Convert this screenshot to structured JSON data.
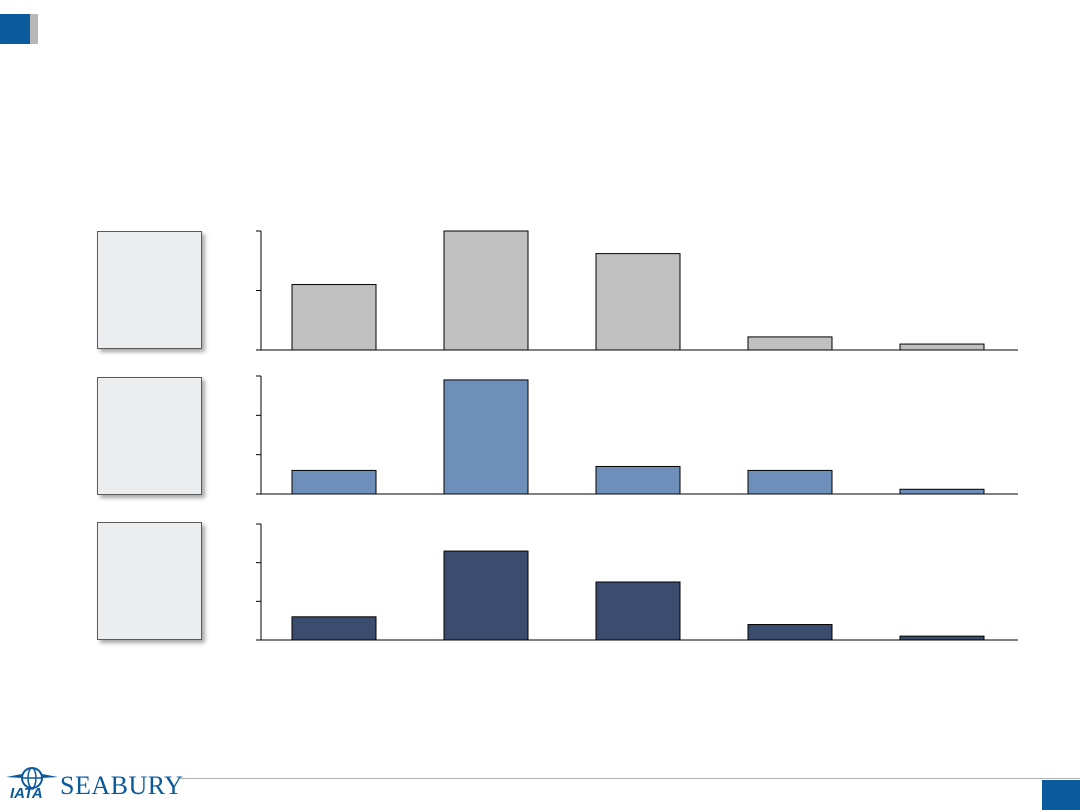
{
  "colors": {
    "accent": "#0a5a9c",
    "series_grey": "#c0c0c0",
    "series_light_blue": "#6f8fbb",
    "series_dark_blue": "#3a4d6e",
    "label_box": "#ecedef"
  },
  "logo": {
    "iata_text": "IATA",
    "brand_text": "SEABURY"
  },
  "chart_data": [
    {
      "type": "bar",
      "values": [
        1.1,
        2.0,
        1.62,
        0.22,
        0.1
      ],
      "ylim": [
        0,
        2
      ],
      "yticks": [
        0,
        1,
        2
      ],
      "color": "#c0c0c0"
    },
    {
      "type": "bar",
      "values": [
        0.6,
        2.9,
        0.7,
        0.6,
        0.12
      ],
      "ylim": [
        0,
        3
      ],
      "yticks": [
        0,
        1,
        2,
        3
      ],
      "color": "#6f8fbb"
    },
    {
      "type": "bar",
      "values": [
        0.6,
        2.3,
        1.5,
        0.4,
        0.1
      ],
      "ylim": [
        0,
        3
      ],
      "yticks": [
        0,
        1,
        2,
        3
      ],
      "color": "#3a4d6e"
    }
  ]
}
